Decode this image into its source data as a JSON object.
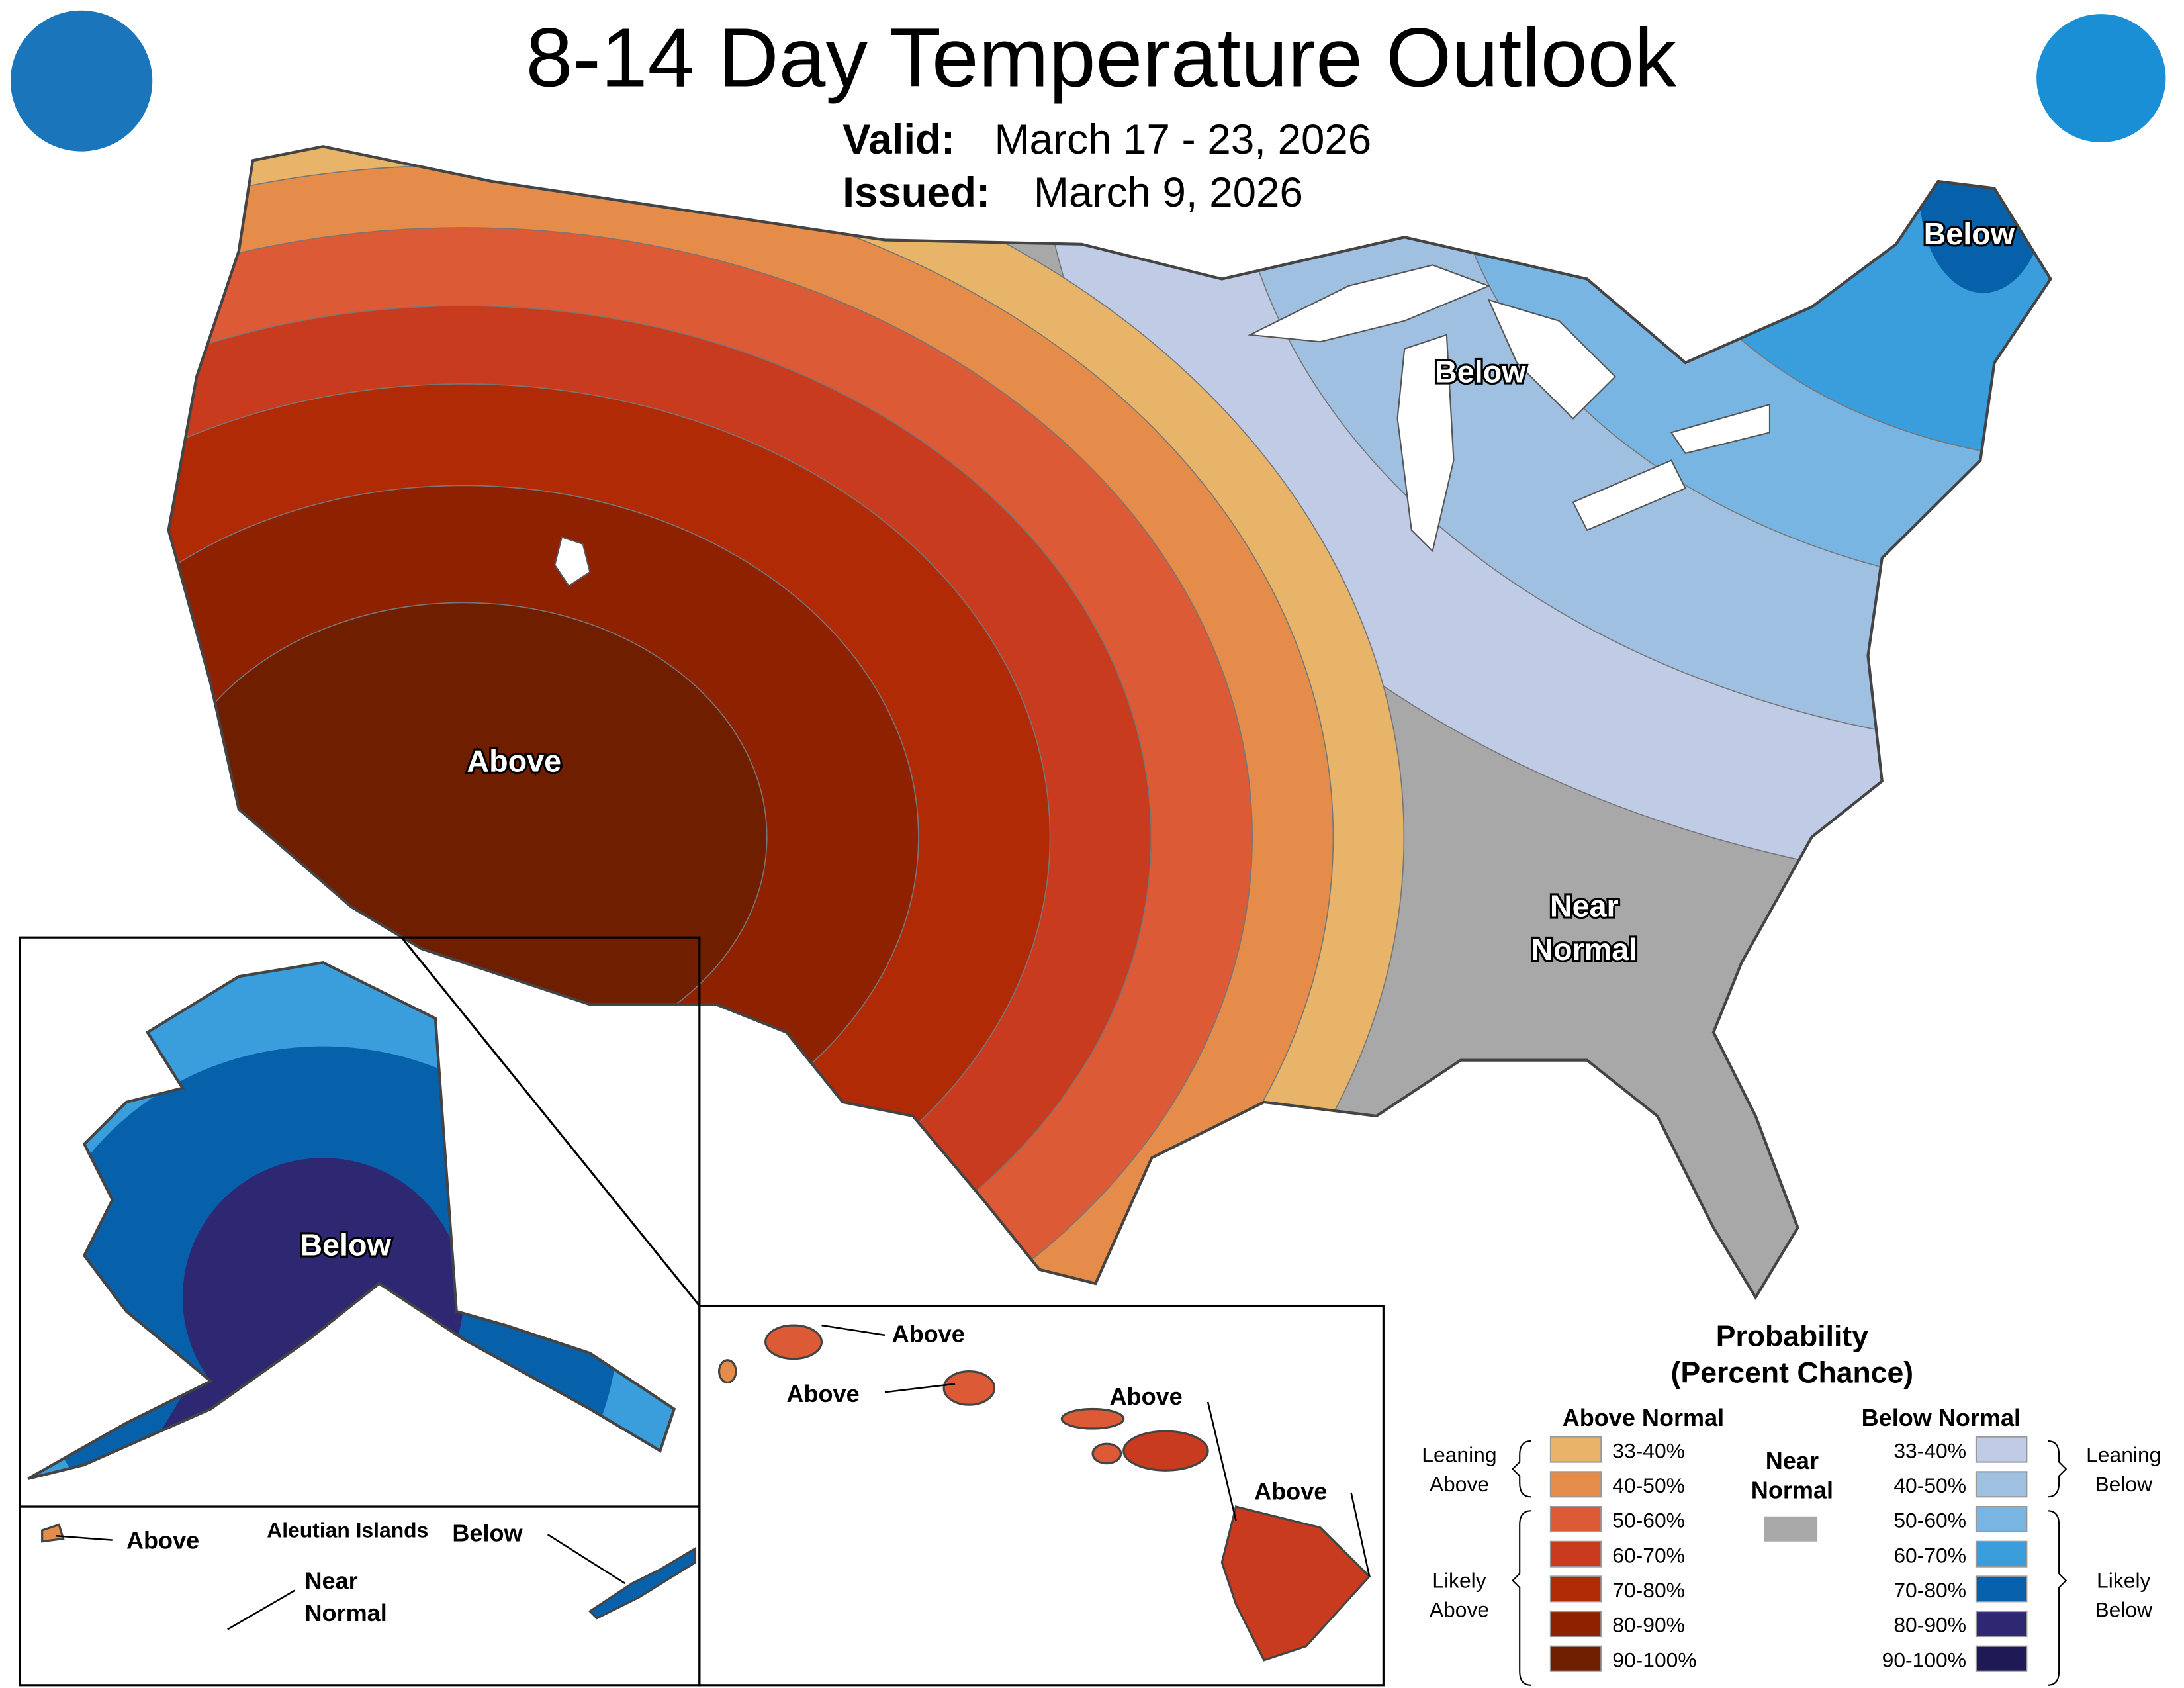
{
  "header": {
    "title": "8-14 Day Temperature Outlook",
    "valid_label": "Valid:",
    "valid": "March 17 - 23, 2026",
    "issued_label": "Issued:",
    "issued": "March 9, 2026"
  },
  "map_labels": {
    "conus_above": "Above",
    "maine_below": "Below",
    "lakes_below": "Below",
    "near_1": "Near",
    "near_2": "Normal",
    "alaska_below": "Below",
    "aleutian_title": "Aleutian Islands",
    "aleutian_above": "Above",
    "aleutian_near_1": "Near",
    "aleutian_near_2": "Normal",
    "aleutian_below": "Below",
    "hawaii": [
      "Above",
      "Above",
      "Above",
      "Above"
    ]
  },
  "legend": {
    "title": "Probability",
    "subtitle": "(Percent Chance)",
    "above_header": "Above Normal",
    "below_header": "Below Normal",
    "near_1": "Near",
    "near_2": "Normal",
    "near_color": "#a8a8a8",
    "leaning_above": [
      "Leaning",
      "Above"
    ],
    "likely_above": [
      "Likely",
      "Above"
    ],
    "leaning_below": [
      "Leaning",
      "Below"
    ],
    "likely_below": [
      "Likely",
      "Below"
    ],
    "above": [
      {
        "label": "33-40%",
        "color": "#e8b46a"
      },
      {
        "label": "40-50%",
        "color": "#e58c4a"
      },
      {
        "label": "50-60%",
        "color": "#dc5a35"
      },
      {
        "label": "60-70%",
        "color": "#c93b1e"
      },
      {
        "label": "70-80%",
        "color": "#b02a06"
      },
      {
        "label": "80-90%",
        "color": "#8e2100"
      },
      {
        "label": "90-100%",
        "color": "#6f1f00"
      }
    ],
    "below": [
      {
        "label": "33-40%",
        "color": "#c0cbe6"
      },
      {
        "label": "40-50%",
        "color": "#9fc0e0"
      },
      {
        "label": "50-60%",
        "color": "#79b5e3"
      },
      {
        "label": "60-70%",
        "color": "#3a9ddc"
      },
      {
        "label": "70-80%",
        "color": "#0760aa"
      },
      {
        "label": "80-90%",
        "color": "#2e2872"
      },
      {
        "label": "90-100%",
        "color": "#1f1a55"
      }
    ]
  }
}
